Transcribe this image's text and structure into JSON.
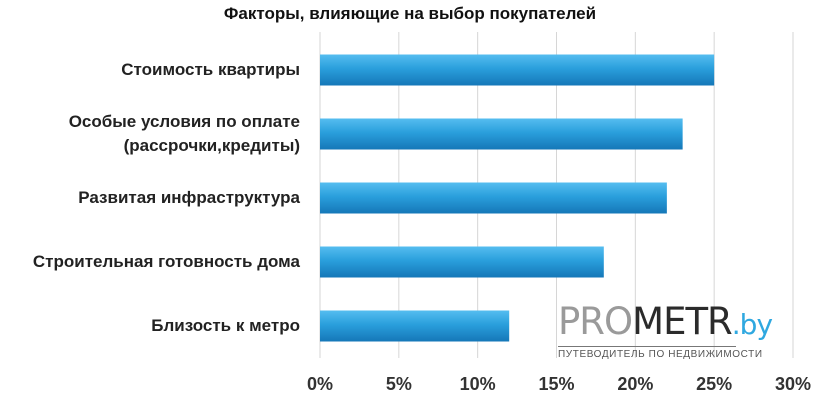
{
  "chart_data": {
    "type": "bar",
    "orientation": "horizontal",
    "title": "Факторы, влияющие на выбор покупателей",
    "categories": [
      [
        "Стоимость квартиры"
      ],
      [
        "Особые условия по оплате",
        "(рассрочки,кредиты)"
      ],
      [
        "Развитая инфраструктура"
      ],
      [
        "Строительная готовность дома"
      ],
      [
        "Близость к метро"
      ]
    ],
    "values": [
      25,
      23,
      22,
      18,
      12
    ],
    "unit": "%",
    "xlim": [
      0,
      30
    ],
    "xticks": [
      "0%",
      "5%",
      "10%",
      "15%",
      "20%",
      "25%",
      "30%"
    ],
    "grid": true,
    "bar_color": "#2a9fdc"
  },
  "logo": {
    "part1": "PRO",
    "part2": "METR",
    "part3": ".by",
    "tagline": "ПУТЕВОДИТЕЛЬ ПО НЕДВИЖИМОСТИ"
  }
}
